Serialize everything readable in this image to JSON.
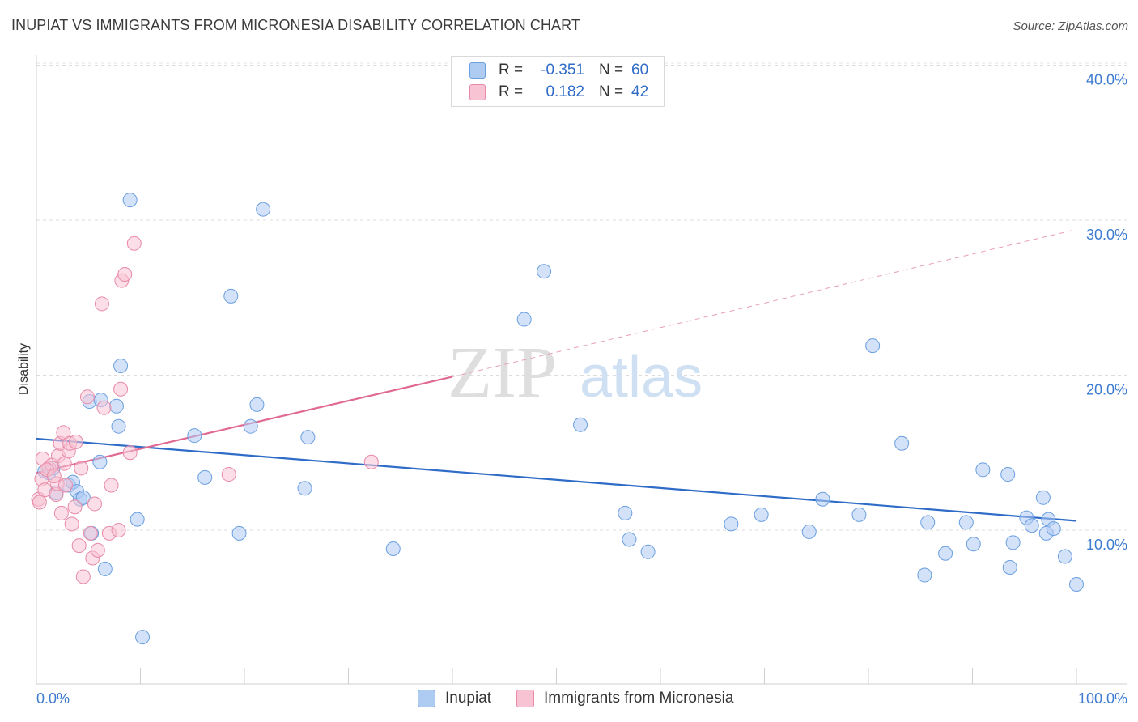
{
  "title": "INUPIAT VS IMMIGRANTS FROM MICRONESIA DISABILITY CORRELATION CHART",
  "source": "Source: ZipAtlas.com",
  "watermark": {
    "zip": "ZIP",
    "atlas": "atlas"
  },
  "legend": {
    "rows": [
      {
        "r_label": "R =",
        "r_value": "-0.351",
        "n_label": "N =",
        "n_value": "60",
        "color": "#aecbf2",
        "border": "#6a9fe0"
      },
      {
        "r_label": "R =",
        "r_value": "0.182",
        "n_label": "N =",
        "n_value": "42",
        "color": "#f8c3d3",
        "border": "#e88aa7"
      }
    ]
  },
  "bottom_legend": {
    "items": [
      {
        "label": "Inupiat",
        "color": "#aecbf2",
        "border": "#6a9fe0"
      },
      {
        "label": "Immigrants from Micronesia",
        "color": "#f8c3d3",
        "border": "#e88aa7"
      }
    ]
  },
  "chart_data": {
    "type": "scatter",
    "title": "INUPIAT VS IMMIGRANTS FROM MICRONESIA DISABILITY CORRELATION CHART",
    "xlabel": "",
    "ylabel": "Disability",
    "xlim": [
      0,
      100
    ],
    "ylim": [
      0,
      40
    ],
    "x_tick_labels": [
      "0.0%",
      "100.0%"
    ],
    "y_tick_labels": [
      "10.0%",
      "20.0%",
      "30.0%",
      "40.0%"
    ],
    "y_ticks": [
      10,
      20,
      30,
      40
    ],
    "grid": "horizontal dashed",
    "series": [
      {
        "name": "Inupiat",
        "color": "#6a9fe0",
        "fill": "#aecbf2",
        "trend": {
          "x": [
            0,
            100
          ],
          "y": [
            15.9,
            10.6
          ],
          "style": "solid"
        },
        "points": [
          [
            1.2,
            13.7
          ],
          [
            1.6,
            14.0
          ],
          [
            3.1,
            12.9
          ],
          [
            3.5,
            13.1
          ],
          [
            3.9,
            12.5
          ],
          [
            4.2,
            12.0
          ],
          [
            5.1,
            18.3
          ],
          [
            5.3,
            9.8
          ],
          [
            6.1,
            14.4
          ],
          [
            6.2,
            18.4
          ],
          [
            6.6,
            7.5
          ],
          [
            7.7,
            18.0
          ],
          [
            7.9,
            16.7
          ],
          [
            8.1,
            20.6
          ],
          [
            9.0,
            31.3
          ],
          [
            9.7,
            10.7
          ],
          [
            10.2,
            3.1
          ],
          [
            15.2,
            16.1
          ],
          [
            16.2,
            13.4
          ],
          [
            18.7,
            25.1
          ],
          [
            19.5,
            9.8
          ],
          [
            20.6,
            16.7
          ],
          [
            21.2,
            18.1
          ],
          [
            21.8,
            30.7
          ],
          [
            25.8,
            12.7
          ],
          [
            26.1,
            16.0
          ],
          [
            34.3,
            8.8
          ],
          [
            46.9,
            23.6
          ],
          [
            48.8,
            26.7
          ],
          [
            52.3,
            16.8
          ],
          [
            56.6,
            11.1
          ],
          [
            57.0,
            9.4
          ],
          [
            58.8,
            8.6
          ],
          [
            66.8,
            10.4
          ],
          [
            69.7,
            11.0
          ],
          [
            74.3,
            9.9
          ],
          [
            75.6,
            12.0
          ],
          [
            79.1,
            11.0
          ],
          [
            80.4,
            21.9
          ],
          [
            83.2,
            15.6
          ],
          [
            85.4,
            7.1
          ],
          [
            85.7,
            10.5
          ],
          [
            87.4,
            8.5
          ],
          [
            89.4,
            10.5
          ],
          [
            90.1,
            9.1
          ],
          [
            91.0,
            13.9
          ],
          [
            93.4,
            13.6
          ],
          [
            93.6,
            7.6
          ],
          [
            93.9,
            9.2
          ],
          [
            95.2,
            10.8
          ],
          [
            95.7,
            10.3
          ],
          [
            96.8,
            12.1
          ],
          [
            97.1,
            9.8
          ],
          [
            97.3,
            10.7
          ],
          [
            97.8,
            10.1
          ],
          [
            98.9,
            8.3
          ],
          [
            100.0,
            6.5
          ],
          [
            0.8,
            13.8
          ],
          [
            1.9,
            12.4
          ],
          [
            4.5,
            12.1
          ]
        ]
      },
      {
        "name": "Immigrants from Micronesia",
        "color": "#e88aa7",
        "fill": "#f8c3d3",
        "trend": {
          "x": [
            0,
            40
          ],
          "y": [
            13.7,
            19.9
          ],
          "style": "solid",
          "extended": {
            "x": [
              40,
              100
            ],
            "y": [
              19.9,
              29.4
            ],
            "style": "dashed"
          }
        },
        "points": [
          [
            0.2,
            12.0
          ],
          [
            0.5,
            13.3
          ],
          [
            0.6,
            14.6
          ],
          [
            0.8,
            12.6
          ],
          [
            1.2,
            14.0
          ],
          [
            1.5,
            14.2
          ],
          [
            1.9,
            12.3
          ],
          [
            2.0,
            13.0
          ],
          [
            2.1,
            14.8
          ],
          [
            2.3,
            15.6
          ],
          [
            2.4,
            11.1
          ],
          [
            2.6,
            16.3
          ],
          [
            2.8,
            12.9
          ],
          [
            3.1,
            15.1
          ],
          [
            3.2,
            15.6
          ],
          [
            3.4,
            10.4
          ],
          [
            3.7,
            11.5
          ],
          [
            3.8,
            15.7
          ],
          [
            4.1,
            9.0
          ],
          [
            4.5,
            7.0
          ],
          [
            4.9,
            18.6
          ],
          [
            5.2,
            9.8
          ],
          [
            5.4,
            8.2
          ],
          [
            5.6,
            11.7
          ],
          [
            5.9,
            8.7
          ],
          [
            6.3,
            24.6
          ],
          [
            6.5,
            17.9
          ],
          [
            7.0,
            9.8
          ],
          [
            7.2,
            12.9
          ],
          [
            7.9,
            10.0
          ],
          [
            8.1,
            19.1
          ],
          [
            8.2,
            26.1
          ],
          [
            8.5,
            26.5
          ],
          [
            9.0,
            15.0
          ],
          [
            9.4,
            28.5
          ],
          [
            18.5,
            13.6
          ],
          [
            32.2,
            14.4
          ],
          [
            1.0,
            13.9
          ],
          [
            1.7,
            13.5
          ],
          [
            2.7,
            14.3
          ],
          [
            0.3,
            11.8
          ],
          [
            4.3,
            14.0
          ]
        ]
      }
    ]
  }
}
